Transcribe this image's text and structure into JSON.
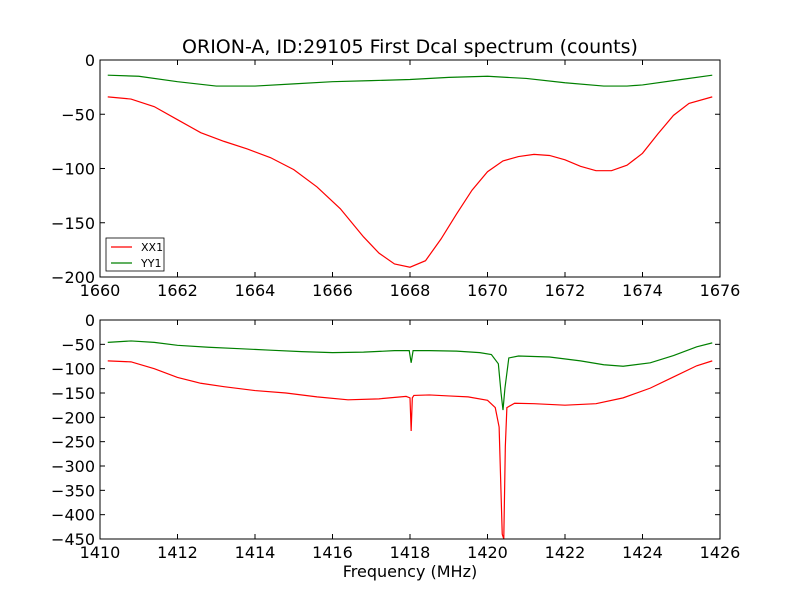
{
  "chart_data": [
    {
      "type": "line",
      "title": "ORION-A, ID:29105 First Dcal spectrum (counts)",
      "xlabel": "",
      "ylabel": "",
      "xlim": [
        1660,
        1676
      ],
      "ylim": [
        -200,
        0
      ],
      "xticks": [
        1660,
        1662,
        1664,
        1666,
        1668,
        1670,
        1672,
        1674,
        1676
      ],
      "yticks": [
        0,
        -50,
        -100,
        -150,
        -200
      ],
      "xtick_labels": [
        "1660",
        "1662",
        "1664",
        "1666",
        "1668",
        "1670",
        "1672",
        "1674",
        "1676"
      ],
      "ytick_labels": [
        "0",
        "−50",
        "−100",
        "−150",
        "−200"
      ],
      "legend_position": "lower-left",
      "grid": false,
      "series": [
        {
          "name": "XX1",
          "color": "#ff0000",
          "x": [
            1660.2,
            1660.8,
            1661.4,
            1662.0,
            1662.6,
            1663.2,
            1663.8,
            1664.4,
            1665.0,
            1665.6,
            1666.2,
            1666.8,
            1667.2,
            1667.6,
            1668.0,
            1668.4,
            1668.8,
            1669.2,
            1669.6,
            1670.0,
            1670.4,
            1670.8,
            1671.2,
            1671.6,
            1672.0,
            1672.4,
            1672.8,
            1673.2,
            1673.6,
            1674.0,
            1674.4,
            1674.8,
            1675.2,
            1675.8
          ],
          "y": [
            -34,
            -36,
            -43,
            -55,
            -67,
            -75,
            -82,
            -90,
            -101,
            -117,
            -137,
            -163,
            -178,
            -188,
            -191,
            -185,
            -165,
            -142,
            -120,
            -103,
            -93,
            -89,
            -87,
            -88,
            -92,
            -98,
            -102,
            -102,
            -97,
            -86,
            -68,
            -51,
            -40,
            -34
          ]
        },
        {
          "name": "YY1",
          "color": "#008000",
          "x": [
            1660.2,
            1661.0,
            1662.0,
            1663.0,
            1664.0,
            1665.0,
            1666.0,
            1667.0,
            1668.0,
            1669.0,
            1670.0,
            1671.0,
            1672.0,
            1673.0,
            1673.6,
            1674.0,
            1675.0,
            1675.8
          ],
          "y": [
            -14,
            -15,
            -20,
            -24,
            -24,
            -22,
            -20,
            -19,
            -18,
            -16,
            -15,
            -17,
            -21,
            -24,
            -24,
            -23,
            -18,
            -14
          ]
        }
      ]
    },
    {
      "type": "line",
      "title": "",
      "xlabel": "Frequency (MHz)",
      "ylabel": "",
      "xlim": [
        1410,
        1426
      ],
      "ylim": [
        -450,
        0
      ],
      "xticks": [
        1410,
        1412,
        1414,
        1416,
        1418,
        1420,
        1422,
        1424,
        1426
      ],
      "yticks": [
        0,
        -50,
        -100,
        -150,
        -200,
        -250,
        -300,
        -350,
        -400,
        -450
      ],
      "xtick_labels": [
        "1410",
        "1412",
        "1414",
        "1416",
        "1418",
        "1420",
        "1422",
        "1424",
        "1426"
      ],
      "ytick_labels": [
        "0",
        "−50",
        "−100",
        "−150",
        "−200",
        "−250",
        "−300",
        "−350",
        "−400",
        "−450"
      ],
      "grid": false,
      "series": [
        {
          "name": "",
          "color": "#ff0000",
          "x": [
            1410.2,
            1410.8,
            1411.4,
            1412.0,
            1412.6,
            1413.2,
            1414.0,
            1414.8,
            1415.6,
            1416.4,
            1417.2,
            1417.9,
            1418.0,
            1418.03,
            1418.06,
            1418.1,
            1418.5,
            1419.0,
            1419.5,
            1420.0,
            1420.2,
            1420.3,
            1420.38,
            1420.42,
            1420.46,
            1420.5,
            1420.7,
            1421.2,
            1422.0,
            1422.8,
            1423.5,
            1424.2,
            1424.8,
            1425.4,
            1425.8
          ],
          "y": [
            -84,
            -86,
            -100,
            -118,
            -130,
            -137,
            -145,
            -150,
            -158,
            -164,
            -162,
            -157,
            -160,
            -228,
            -160,
            -155,
            -154,
            -156,
            -158,
            -165,
            -180,
            -220,
            -440,
            -450,
            -260,
            -180,
            -171,
            -172,
            -175,
            -172,
            -160,
            -140,
            -117,
            -94,
            -84
          ],
          "interval_note": ""
        },
        {
          "name": "",
          "color": "#008000",
          "x": [
            1410.2,
            1410.8,
            1411.4,
            1412.0,
            1412.8,
            1413.6,
            1414.4,
            1415.2,
            1416.0,
            1416.8,
            1417.6,
            1417.98,
            1418.03,
            1418.08,
            1418.5,
            1419.2,
            1419.8,
            1420.1,
            1420.28,
            1420.35,
            1420.4,
            1420.45,
            1420.55,
            1420.8,
            1421.6,
            1422.4,
            1423.0,
            1423.5,
            1424.2,
            1424.8,
            1425.4,
            1425.8
          ],
          "y": [
            -46,
            -43,
            -46,
            -52,
            -56,
            -59,
            -62,
            -65,
            -67,
            -66,
            -63,
            -63,
            -88,
            -63,
            -63,
            -64,
            -67,
            -71,
            -90,
            -150,
            -185,
            -140,
            -78,
            -74,
            -76,
            -84,
            -92,
            -95,
            -88,
            -73,
            -55,
            -47
          ]
        }
      ]
    }
  ],
  "legend": {
    "items": [
      {
        "label": "XX1",
        "color": "#ff0000"
      },
      {
        "label": "YY1",
        "color": "#008000"
      }
    ]
  }
}
